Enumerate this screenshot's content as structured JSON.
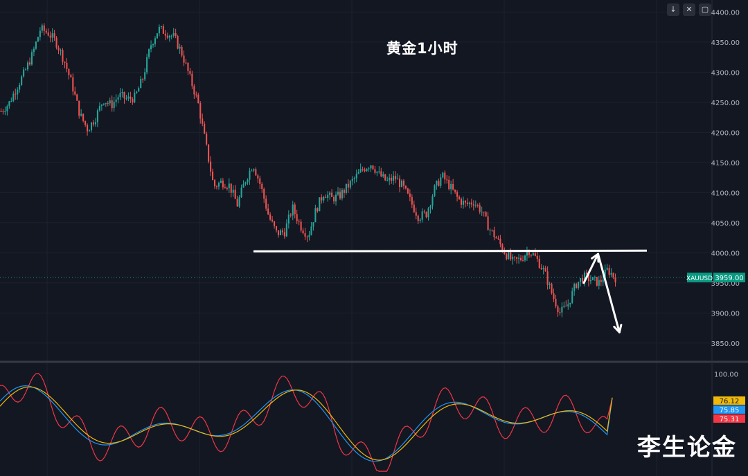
{
  "toolbar": {
    "scroll_icon": "↓",
    "collapse_icon": "✕",
    "fullscreen_icon": "▢"
  },
  "chart_data": [
    {
      "type": "candlestick",
      "title": "黄金1小时",
      "symbol": "XAUUSD",
      "last_price_label": "3959.00",
      "last_price": 3959.0,
      "ylim": [
        3820,
        4420
      ],
      "y_ticks": [
        "4400.00",
        "4350.00",
        "4300.00",
        "4250.00",
        "4200.00",
        "4150.00",
        "4100.00",
        "4050.00",
        "4000.00",
        "3950.00",
        "3900.00",
        "3850.00"
      ],
      "y_tick_values": [
        4400,
        4350,
        4300,
        4250,
        4200,
        4150,
        4100,
        4050,
        4000,
        3950,
        3900,
        3850
      ],
      "close_path": [
        4235,
        4248,
        4275,
        4300,
        4330,
        4372,
        4365,
        4350,
        4320,
        4280,
        4230,
        4205,
        4225,
        4255,
        4245,
        4262,
        4255,
        4258,
        4290,
        4345,
        4372,
        4366,
        4358,
        4330,
        4290,
        4250,
        4180,
        4110,
        4118,
        4112,
        4080,
        4120,
        4148,
        4110,
        4060,
        4032,
        4035,
        4075,
        4045,
        4028,
        4072,
        4100,
        4090,
        4095,
        4110,
        4125,
        4140,
        4148,
        4130,
        4118,
        4125,
        4110,
        4085,
        4060,
        4065,
        4105,
        4128,
        4110,
        4090,
        4080,
        4085,
        4070,
        4040,
        4022,
        4000,
        3985,
        3990,
        4005,
        3990,
        3968,
        3930,
        3900,
        3915,
        3948,
        3960,
        3955,
        3950,
        3972,
        3959
      ],
      "support_line": {
        "value": 4003,
        "label": ""
      },
      "annotations": [
        {
          "type": "arrow",
          "from": [
            0.82,
            3950
          ],
          "to": [
            0.84,
            3998
          ]
        },
        {
          "type": "arrow",
          "from": [
            0.84,
            3998
          ],
          "to": [
            0.87,
            3868
          ]
        }
      ]
    },
    {
      "type": "line",
      "title": "",
      "ylim": [
        0,
        110
      ],
      "y_ticks": [
        "100.00"
      ],
      "y_tick_values": [
        100
      ],
      "series": [
        {
          "name": "",
          "color": "#f0b90b",
          "label": "76.12",
          "value": 76.12
        },
        {
          "name": "",
          "color": "#2196f3",
          "label": "75.85",
          "value": 75.85
        },
        {
          "name": "",
          "color": "#f23645",
          "label": "75.31",
          "value": 75.31
        }
      ]
    }
  ],
  "watermark": "李生论金",
  "colors": {
    "background": "#131722",
    "grid": "#1e222d",
    "up": "#26a69a",
    "down": "#ef5350",
    "axis_text": "#b2b5be",
    "price_tag": "#089981"
  }
}
